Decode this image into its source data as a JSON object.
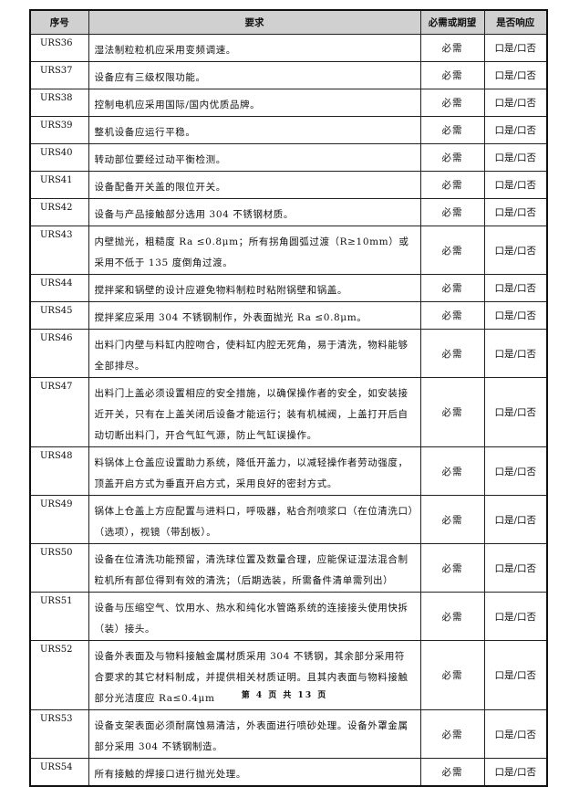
{
  "table": {
    "headers": [
      "序号",
      "要求",
      "必需或期望",
      "是否响应"
    ],
    "rows": [
      {
        "id": "URS36",
        "requirement": "湿法制粒粒机应采用变频调速。",
        "need": "必需",
        "response": "口是/口否"
      },
      {
        "id": "URS37",
        "requirement": "设备应有三级权限功能。",
        "need": "必需",
        "response": "口是/口否"
      },
      {
        "id": "URS38",
        "requirement": "控制电机应采用国际/国内优质品牌。",
        "need": "必需",
        "response": "口是/口否"
      },
      {
        "id": "URS39",
        "requirement": "整机设备应运行平稳。",
        "need": "必需",
        "response": "口是/口否"
      },
      {
        "id": "URS40",
        "requirement": "转动部位要经过动平衡检测。",
        "need": "必需",
        "response": "口是/口否"
      },
      {
        "id": "URS41",
        "requirement": "设备配备开关盖的限位开关。",
        "need": "必需",
        "response": "口是/口否"
      },
      {
        "id": "URS42",
        "requirement": "设备与产品接触部分选用 304 不锈钢材质。",
        "need": "必需",
        "response": "口是/口否"
      },
      {
        "id": "URS43",
        "requirement": "内壁抛光，粗糙度 Ra ≤0.8μm；所有拐角圆弧过渡（R≥10mm）或采用不低于 135 度倒角过渡。",
        "need": "必需",
        "response": "口是/口否"
      },
      {
        "id": "URS44",
        "requirement": "搅拌桨和锅壁的设计应避免物料制粒时粘附锅壁和锅盖。",
        "need": "必需",
        "response": "口是/口否"
      },
      {
        "id": "URS45",
        "requirement": "搅拌桨应采用 304 不锈钢制作，外表面抛光 Ra ≤0.8μm。",
        "need": "必需",
        "response": "口是/口否"
      },
      {
        "id": "URS46",
        "requirement": "出料门内壁与料缸内腔吻合，使料缸内腔无死角，易于清洗，物料能够全部排尽。",
        "need": "必需",
        "response": "口是/口否"
      },
      {
        "id": "URS47",
        "requirement": "出料门上盖必须设置相应的安全措施，以确保操作者的安全，如安装接近开关，只有在上盖关闭后设备才能运行；装有机械阀，上盖打开后自动切断出料门，开合气缸气源，防止气缸误操作。",
        "need": "必需",
        "response": "口是/口否"
      },
      {
        "id": "URS48",
        "requirement": "料锅体上仓盖应设置助力系统，降低开盖力，以减轻操作者劳动强度，顶盖开启方式为垂直开启方式，采用良好的密封方式。",
        "need": "必需",
        "response": "口是/口否"
      },
      {
        "id": "URS49",
        "requirement": "锅体上仓盖上方应配置与进料口，呼吸器，粘合剂喷浆口（在位清洗口）（选项），视镜（带刮板）。",
        "need": "必需",
        "response": "口是/口否"
      },
      {
        "id": "URS50",
        "requirement": "设备在位清洗功能预留，清洗球位置及数量合理，应能保证湿法混合制粒机所有部位得到有效的清洗；（后期选装，所需备件清单需列出）",
        "need": "必需",
        "response": "口是/口否"
      },
      {
        "id": "URS51",
        "requirement": "设备与压缩空气、饮用水、热水和纯化水管路系统的连接接头使用快拆（装）接头。",
        "need": "必需",
        "response": "口是/口否"
      },
      {
        "id": "URS52",
        "requirement": "设备外表面及与物料接触金属材质采用 304 不锈钢，其余部分采用符合要求的其它材料制成，并提供相关材质证明。且其内表面与物料接触部分光洁度应 Ra≤0.4μm",
        "need": "必需",
        "response": "口是/口否"
      },
      {
        "id": "URS53",
        "requirement": "设备支架表面必须耐腐蚀易清洁，外表面进行喷砂处理。设备外罩金属部分采用 304 不锈钢制造。",
        "need": "必需",
        "response": "口是/口否"
      },
      {
        "id": "URS54",
        "requirement": "所有接触的焊接口进行抛光处理。",
        "need": "必需",
        "response": "口是/口否"
      }
    ]
  },
  "footer": {
    "page_text": "第 4 页 共 13 页"
  }
}
